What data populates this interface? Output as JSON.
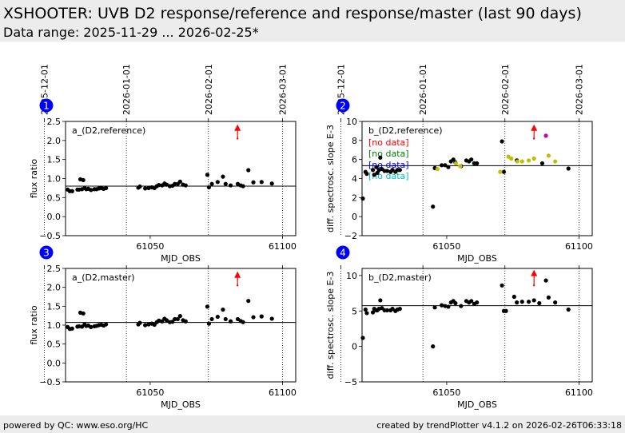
{
  "title": "XSHOOTER: UVB D2 response/reference and response/master (last 90 days)",
  "subtitle": "Data range: 2025-11-29 ... 2026-02-25*",
  "footer": {
    "left": "powered by QC: www.eso.org/HC",
    "right": "created by trendPlotter v4.1.2 on 2026-02-26T06:33:18"
  },
  "colors": {
    "black": "#000000",
    "red": "#ff0000",
    "green": "#008000",
    "blue": "#0000ff",
    "cyan": "#00bfbf",
    "olive": "#bfbf00",
    "magenta": "#bf00bf",
    "badge": "#0000ff"
  },
  "chart_data": [
    {
      "id": 1,
      "badge": "1",
      "type": "scatter",
      "title": "a_(D2,reference)",
      "xlabel": "MJD_OBS",
      "ylabel": "flux ratio",
      "xlim": [
        61018,
        61105
      ],
      "ylim": [
        -0.5,
        2.5
      ],
      "xticks": [
        61050,
        61100
      ],
      "yticks": [
        -0.5,
        0.0,
        0.5,
        1.0,
        1.5,
        2.0,
        2.5
      ],
      "ytick_labels": [
        "−0.5",
        "0.0",
        "0.5",
        "1.0",
        "1.5",
        "2.0",
        "2.5"
      ],
      "date_lines": [
        61010,
        61041,
        61072,
        61100
      ],
      "date_labels": [
        "2025-12-01",
        "2026-01-01",
        "2026-02-01",
        "2026-03-01"
      ],
      "hline": 0.8,
      "outlier_arrow": {
        "x": 61083,
        "from": 2.05,
        "to": 2.4
      },
      "notes": [],
      "series": [
        {
          "color": "black",
          "points": [
            [
              61018.8,
              0.71
            ],
            [
              61019.6,
              0.67
            ],
            [
              61020.5,
              0.67
            ],
            [
              61022.5,
              0.71
            ],
            [
              61023.1,
              0.71
            ],
            [
              61023.6,
              0.98
            ],
            [
              61024.2,
              0.72
            ],
            [
              61024.7,
              0.96
            ],
            [
              61025.2,
              0.75
            ],
            [
              61025.8,
              0.72
            ],
            [
              61026.6,
              0.73
            ],
            [
              61027.6,
              0.7
            ],
            [
              61028.9,
              0.72
            ],
            [
              61029.7,
              0.72
            ],
            [
              61030.6,
              0.74
            ],
            [
              61031.5,
              0.75
            ],
            [
              61032.4,
              0.73
            ],
            [
              61033.3,
              0.75
            ],
            [
              61045.5,
              0.76
            ],
            [
              61046.1,
              0.79
            ],
            [
              61048.1,
              0.74
            ],
            [
              61049.4,
              0.75
            ],
            [
              61050.6,
              0.77
            ],
            [
              61051.6,
              0.75
            ],
            [
              61052.5,
              0.8
            ],
            [
              61053.3,
              0.83
            ],
            [
              61054.5,
              0.82
            ],
            [
              61055.4,
              0.87
            ],
            [
              61056.2,
              0.84
            ],
            [
              61057.4,
              0.8
            ],
            [
              61058.4,
              0.81
            ],
            [
              61059.3,
              0.86
            ],
            [
              61060.4,
              0.86
            ],
            [
              61061.3,
              0.92
            ],
            [
              61062.4,
              0.84
            ],
            [
              61063.4,
              0.82
            ],
            [
              61071.6,
              1.1
            ],
            [
              61072.2,
              0.77
            ],
            [
              61073.3,
              0.86
            ],
            [
              61075.5,
              0.91
            ],
            [
              61077.5,
              1.05
            ],
            [
              61078.5,
              0.86
            ],
            [
              61080.4,
              0.82
            ],
            [
              61083.1,
              0.86
            ],
            [
              61084.2,
              0.82
            ],
            [
              61085.1,
              0.8
            ],
            [
              61087.1,
              1.22
            ],
            [
              61089.0,
              0.9
            ],
            [
              61092.1,
              0.91
            ],
            [
              61096.0,
              0.87
            ]
          ]
        }
      ]
    },
    {
      "id": 2,
      "badge": "2",
      "type": "scatter",
      "title": "b_(D2,reference)",
      "xlabel": "MJD_OBS",
      "ylabel": "diff. spectrosc. slope E-3",
      "xlim": [
        61018,
        61105
      ],
      "ylim": [
        -2,
        10
      ],
      "xticks": [
        61050,
        61100
      ],
      "yticks": [
        -2,
        0,
        2,
        4,
        6,
        8,
        10
      ],
      "ytick_labels": [
        "−2",
        "0",
        "2",
        "4",
        "6",
        "8",
        "10"
      ],
      "date_lines": [
        61010,
        61041,
        61072,
        61100
      ],
      "date_labels": [
        "2025-12-01",
        "2026-01-01",
        "2026-02-01",
        "2026-03-01"
      ],
      "hline": 5.35,
      "outlier_arrow": {
        "x": 61083,
        "from": 8.2,
        "to": 9.6
      },
      "notes": [
        {
          "text": "[no data]",
          "color": "red"
        },
        {
          "text": "[no data]",
          "color": "green"
        },
        {
          "text": "[no data]",
          "color": "blue"
        },
        {
          "text": "[no data]",
          "color": "cyan"
        }
      ],
      "series": [
        {
          "color": "black",
          "points": [
            [
              61018.3,
              1.9
            ],
            [
              61019.3,
              4.7
            ],
            [
              61019.8,
              4.5
            ],
            [
              61022.1,
              4.9
            ],
            [
              61022.6,
              4.4
            ],
            [
              61023.4,
              5.2
            ],
            [
              61023.8,
              4.6
            ],
            [
              61024.4,
              4.9
            ],
            [
              61024.9,
              6.2
            ],
            [
              61025.5,
              5.0
            ],
            [
              61026.5,
              4.8
            ],
            [
              61027.5,
              4.8
            ],
            [
              61028.8,
              4.7
            ],
            [
              61029.5,
              4.9
            ],
            [
              61030.6,
              4.7
            ],
            [
              61031.4,
              4.9
            ],
            [
              61032.3,
              4.9
            ],
            [
              61044.8,
              1.05
            ],
            [
              61045.5,
              5.1
            ],
            [
              61048.1,
              5.4
            ],
            [
              61049.4,
              5.4
            ],
            [
              61050.6,
              5.2
            ],
            [
              61051.6,
              5.8
            ],
            [
              61052.5,
              6.0
            ],
            [
              61053.3,
              5.7
            ],
            [
              61055.4,
              5.3
            ],
            [
              61057.4,
              5.9
            ],
            [
              61058.4,
              5.8
            ],
            [
              61059.3,
              6.0
            ],
            [
              61060.4,
              5.6
            ],
            [
              61061.4,
              5.6
            ],
            [
              61070.9,
              7.9
            ],
            [
              61071.6,
              4.7
            ],
            [
              61076.5,
              5.9
            ],
            [
              61086.1,
              5.6
            ],
            [
              61096.0,
              5.05
            ]
          ]
        },
        {
          "color": "olive",
          "points": [
            [
              61046.5,
              5.0
            ],
            [
              61053.5,
              5.6
            ],
            [
              61055.1,
              5.3
            ],
            [
              61070.2,
              4.7
            ],
            [
              61073.3,
              6.3
            ],
            [
              61074.4,
              6.1
            ],
            [
              61076.7,
              5.8
            ],
            [
              61078.5,
              5.8
            ],
            [
              61081.0,
              5.9
            ],
            [
              61083.0,
              6.1
            ],
            [
              61088.5,
              6.4
            ],
            [
              61091.0,
              5.8
            ]
          ]
        },
        {
          "color": "magenta",
          "points": [
            [
              61087.5,
              8.5
            ]
          ]
        }
      ]
    },
    {
      "id": 3,
      "badge": "3",
      "type": "scatter",
      "title": "a_(D2,master)",
      "xlabel": "MJD_OBS",
      "ylabel": "flux ratio",
      "xlim": [
        61018,
        61105
      ],
      "ylim": [
        -0.5,
        2.5
      ],
      "xticks": [
        61050,
        61100
      ],
      "yticks": [
        -0.5,
        0.0,
        0.5,
        1.0,
        1.5,
        2.0,
        2.5
      ],
      "ytick_labels": [
        "−0.5",
        "0.0",
        "0.5",
        "1.0",
        "1.5",
        "2.0",
        "2.5"
      ],
      "date_lines": [
        61010,
        61041,
        61072,
        61100
      ],
      "date_labels": [],
      "hline": 1.07,
      "outlier_arrow": {
        "x": 61083,
        "from": 2.05,
        "to": 2.4
      },
      "notes": [],
      "series": [
        {
          "color": "black",
          "points": [
            [
              61018.8,
              0.95
            ],
            [
              61019.6,
              0.9
            ],
            [
              61020.5,
              0.91
            ],
            [
              61022.5,
              0.96
            ],
            [
              61023.1,
              0.97
            ],
            [
              61023.6,
              1.33
            ],
            [
              61024.2,
              0.96
            ],
            [
              61024.7,
              1.31
            ],
            [
              61025.2,
              1.02
            ],
            [
              61025.8,
              0.98
            ],
            [
              61026.6,
              0.99
            ],
            [
              61027.6,
              0.95
            ],
            [
              61028.9,
              0.97
            ],
            [
              61029.7,
              0.98
            ],
            [
              61030.6,
              1.0
            ],
            [
              61031.5,
              1.01
            ],
            [
              61032.4,
              0.99
            ],
            [
              61033.3,
              1.02
            ],
            [
              61045.5,
              1.02
            ],
            [
              61046.1,
              1.06
            ],
            [
              61048.1,
              1.0
            ],
            [
              61049.4,
              1.02
            ],
            [
              61050.6,
              1.04
            ],
            [
              61051.6,
              1.01
            ],
            [
              61052.5,
              1.08
            ],
            [
              61053.3,
              1.12
            ],
            [
              61054.5,
              1.1
            ],
            [
              61055.4,
              1.17
            ],
            [
              61056.2,
              1.13
            ],
            [
              61057.4,
              1.08
            ],
            [
              61058.4,
              1.09
            ],
            [
              61059.3,
              1.16
            ],
            [
              61060.4,
              1.16
            ],
            [
              61061.3,
              1.24
            ],
            [
              61062.4,
              1.13
            ],
            [
              61063.4,
              1.1
            ],
            [
              61071.6,
              1.49
            ],
            [
              61072.2,
              1.04
            ],
            [
              61073.3,
              1.16
            ],
            [
              61075.5,
              1.22
            ],
            [
              61077.5,
              1.41
            ],
            [
              61078.5,
              1.16
            ],
            [
              61080.4,
              1.1
            ],
            [
              61083.1,
              1.16
            ],
            [
              61084.2,
              1.11
            ],
            [
              61085.1,
              1.08
            ],
            [
              61087.1,
              1.64
            ],
            [
              61089.0,
              1.21
            ],
            [
              61092.1,
              1.23
            ],
            [
              61096.0,
              1.17
            ]
          ]
        }
      ]
    },
    {
      "id": 4,
      "badge": "4",
      "type": "scatter",
      "title": "b_(D2,master)",
      "xlabel": "MJD_OBS",
      "ylabel": "diff. spectrosc. slope E-3",
      "xlim": [
        61018,
        61105
      ],
      "ylim": [
        -5,
        11
      ],
      "xticks": [
        61050,
        61100
      ],
      "yticks": [
        -5,
        0,
        5,
        10
      ],
      "ytick_labels": [
        "−5",
        "0",
        "5",
        "10"
      ],
      "date_lines": [
        61010,
        61041,
        61072,
        61100
      ],
      "date_labels": [],
      "hline": 5.75,
      "outlier_arrow": {
        "x": 61083,
        "from": 8.6,
        "to": 10.7
      },
      "notes": [],
      "series": [
        {
          "color": "black",
          "points": [
            [
              61018.3,
              1.2
            ],
            [
              61019.3,
              5.2
            ],
            [
              61019.8,
              4.7
            ],
            [
              61022.1,
              4.8
            ],
            [
              61022.6,
              5.3
            ],
            [
              61023.4,
              5.1
            ],
            [
              61023.8,
              5.1
            ],
            [
              61024.4,
              5.3
            ],
            [
              61024.9,
              6.5
            ],
            [
              61025.5,
              5.4
            ],
            [
              61026.5,
              5.1
            ],
            [
              61027.5,
              5.1
            ],
            [
              61028.8,
              5.1
            ],
            [
              61029.5,
              5.3
            ],
            [
              61030.6,
              5.0
            ],
            [
              61031.4,
              5.2
            ],
            [
              61032.3,
              5.3
            ],
            [
              61044.8,
              0.0
            ],
            [
              61045.5,
              5.5
            ],
            [
              61048.1,
              5.8
            ],
            [
              61049.4,
              5.7
            ],
            [
              61050.6,
              5.6
            ],
            [
              61051.6,
              6.2
            ],
            [
              61052.5,
              6.4
            ],
            [
              61053.3,
              6.1
            ],
            [
              61055.4,
              5.7
            ],
            [
              61057.4,
              6.4
            ],
            [
              61058.4,
              6.2
            ],
            [
              61059.3,
              6.4
            ],
            [
              61060.4,
              6.0
            ],
            [
              61061.4,
              6.2
            ],
            [
              61070.9,
              8.6
            ],
            [
              61071.6,
              5.0
            ],
            [
              61072.4,
              5.0
            ],
            [
              61075.5,
              7.0
            ],
            [
              61076.5,
              6.2
            ],
            [
              61078.5,
              6.3
            ],
            [
              61081.0,
              6.3
            ],
            [
              61083.0,
              6.5
            ],
            [
              61085.0,
              6.1
            ],
            [
              61087.5,
              9.3
            ],
            [
              61088.5,
              6.9
            ],
            [
              61091.0,
              6.2
            ],
            [
              61096.0,
              5.2
            ]
          ]
        }
      ]
    }
  ]
}
